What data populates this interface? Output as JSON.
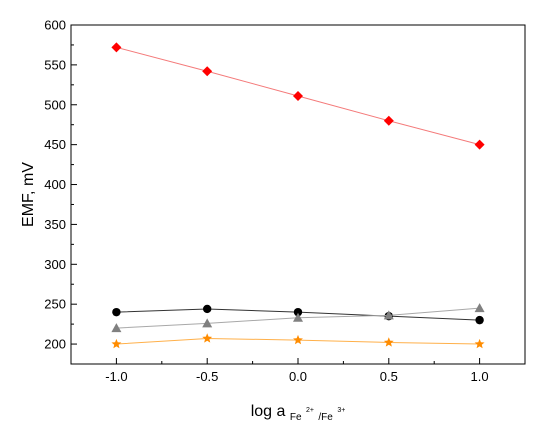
{
  "chart_data": {
    "type": "line",
    "xlabel": {
      "main": "log a",
      "sub1": "Fe",
      "sup1": "2+",
      "sub2": "/Fe",
      "sup2": "3+"
    },
    "ylabel": "EMF, mV",
    "xlim": [
      -1.25,
      1.25
    ],
    "ylim": [
      175,
      600
    ],
    "x_ticks": [
      -1.0,
      -0.5,
      0.0,
      0.5,
      1.0
    ],
    "x_tick_labels": [
      "-1.0",
      "-0.5",
      "0.0",
      "0.5",
      "1.0"
    ],
    "y_ticks": [
      200,
      250,
      300,
      350,
      400,
      450,
      500,
      550,
      600
    ],
    "y_tick_labels": [
      "200",
      "250",
      "300",
      "350",
      "400",
      "450",
      "500",
      "550",
      "600"
    ],
    "grid": false,
    "legend": "none",
    "x": [
      -1.0,
      -0.5,
      0.0,
      0.5,
      1.0
    ],
    "series": [
      {
        "values": [
          572,
          542,
          511,
          480,
          450
        ],
        "color": "#ff0000",
        "line_color": "#f47a7a",
        "marker": "diamond"
      },
      {
        "values": [
          240,
          244,
          240,
          235,
          230
        ],
        "color": "#000000",
        "line_color": "#333333",
        "marker": "circle"
      },
      {
        "values": [
          220,
          226,
          233,
          236,
          245
        ],
        "color": "#808080",
        "line_color": "#a8a8a8",
        "marker": "triangle"
      },
      {
        "values": [
          200,
          207,
          205,
          202,
          200
        ],
        "color": "#ff8c00",
        "line_color": "#ffb04a",
        "marker": "star"
      }
    ]
  }
}
